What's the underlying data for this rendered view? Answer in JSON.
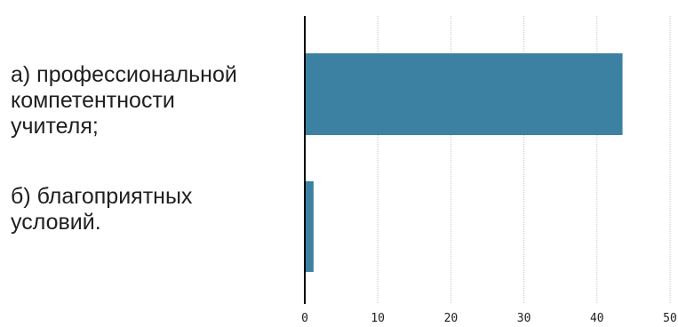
{
  "chart_data": {
    "type": "bar",
    "orientation": "horizontal",
    "categories": [
      "а) профессиональной\nкомпетентности\nучителя;",
      "б) благоприятных\nусловий."
    ],
    "values": [
      43.5,
      1.2
    ],
    "xlim": [
      0,
      50
    ],
    "xticks": [
      "0",
      "10",
      "20",
      "30",
      "40",
      "50"
    ],
    "grid": true,
    "bar_color": "#3c81a1",
    "grid_color": "#c8c8c8",
    "axis_color": "#000000"
  }
}
